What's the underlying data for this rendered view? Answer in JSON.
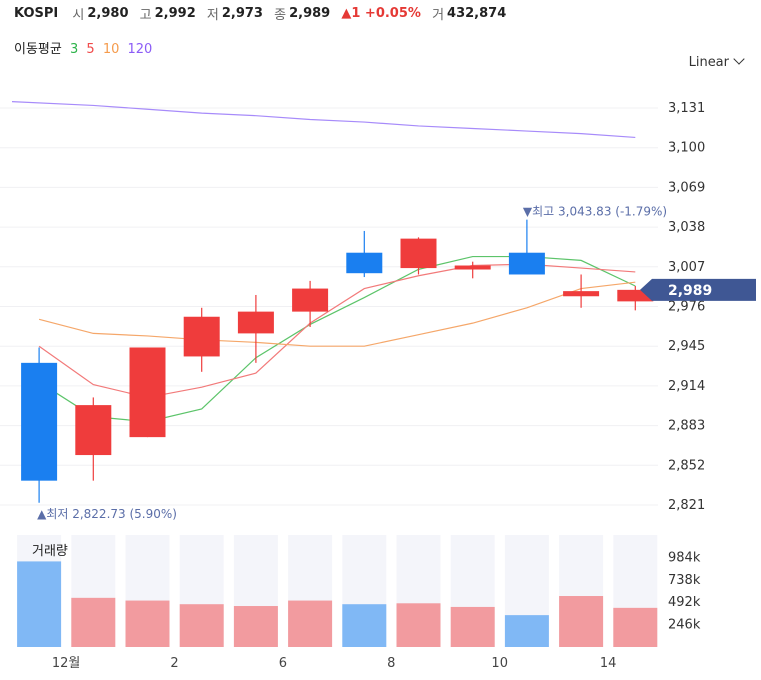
{
  "header": {
    "ticker": "KOSPI",
    "open_label": "시",
    "open": "2,980",
    "high_label": "고",
    "high": "2,992",
    "low_label": "저",
    "low": "2,973",
    "close_label": "종",
    "close": "2,989",
    "change": "▲1 +0.05%",
    "volume_label": "거",
    "volume": "432,874"
  },
  "moving_average": {
    "label": "이동평균",
    "periods": [
      {
        "text": "3",
        "color": "#2db34a"
      },
      {
        "text": "5",
        "color": "#f04a4a"
      },
      {
        "text": "10",
        "color": "#f59b4c"
      },
      {
        "text": "120",
        "color": "#8b5cf6"
      }
    ]
  },
  "scale_selector": {
    "label": "Linear"
  },
  "chart_data": {
    "type": "candlestick",
    "price_axis": {
      "ticks": [
        "3,131",
        "3,100",
        "3,069",
        "3,038",
        "3,007",
        "2,976",
        "2,945",
        "2,914",
        "2,883",
        "2,852",
        "2,821"
      ],
      "min": 2821,
      "max": 3131
    },
    "current_price_tag": "2,989",
    "high_annotation": "▼최고 3,043.83 (-1.79%)",
    "low_annotation": "▲최저 2,822.73 (5.90%)",
    "x_ticks": [
      {
        "index": 0.5,
        "label": "12월"
      },
      {
        "index": 2.5,
        "label": "2"
      },
      {
        "index": 4.5,
        "label": "6"
      },
      {
        "index": 6.5,
        "label": "8"
      },
      {
        "index": 8.5,
        "label": "10"
      },
      {
        "index": 10.5,
        "label": "14"
      }
    ],
    "candles": [
      {
        "open": 2932,
        "high": 2944,
        "low": 2822.73,
        "close": 2840
      },
      {
        "open": 2860,
        "high": 2905,
        "low": 2840,
        "close": 2899
      },
      {
        "open": 2874,
        "high": 2944,
        "low": 2874,
        "close": 2944
      },
      {
        "open": 2937,
        "high": 2975,
        "low": 2925,
        "close": 2968
      },
      {
        "open": 2955,
        "high": 2985,
        "low": 2932,
        "close": 2972
      },
      {
        "open": 2972,
        "high": 2996,
        "low": 2960,
        "close": 2990
      },
      {
        "open": 3018,
        "high": 3035,
        "low": 2999,
        "close": 3002
      },
      {
        "open": 3006,
        "high": 3030,
        "low": 3001,
        "close": 3029
      },
      {
        "open": 3006,
        "high": 3011,
        "low": 2998,
        "close": 3008
      },
      {
        "open": 3018,
        "high": 3043.83,
        "low": 3001,
        "close": 3001
      },
      {
        "open": 2984,
        "high": 3001,
        "low": 2975,
        "close": 2988
      },
      {
        "open": 2980,
        "high": 2992,
        "low": 2973,
        "close": 2989
      }
    ],
    "ma_series": [
      {
        "period": "3",
        "color": "#5cc46a",
        "values": [
          2917,
          2890,
          2886,
          2896,
          2936,
          2962,
          2983,
          3005,
          3015,
          3015,
          3012,
          2992
        ]
      },
      {
        "period": "5",
        "color": "#f27a7a",
        "values": [
          2945,
          2915,
          2905,
          2913,
          2924,
          2963,
          2990,
          3000,
          3008,
          3009,
          3006,
          3003
        ]
      },
      {
        "period": "10",
        "color": "#f5a76a",
        "values": [
          2966,
          2955,
          2953,
          2950,
          2948,
          2945,
          2945,
          2954,
          2963,
          2975,
          2990,
          2995
        ]
      },
      {
        "period": "120",
        "color": "#a78bfa",
        "values": [
          3136,
          3133,
          3130,
          3127,
          3125,
          3122,
          3120,
          3117,
          3115,
          3113,
          3111,
          3108
        ]
      }
    ],
    "volume": {
      "label": "거래량",
      "ticks": [
        "984k",
        "738k",
        "492k",
        "246k"
      ],
      "max": 1230,
      "values": [
        940,
        540,
        510,
        470,
        450,
        510,
        470,
        480,
        440,
        350,
        560,
        430
      ],
      "up_color": "#f29b9f",
      "down_color": "#80b8f5"
    }
  }
}
